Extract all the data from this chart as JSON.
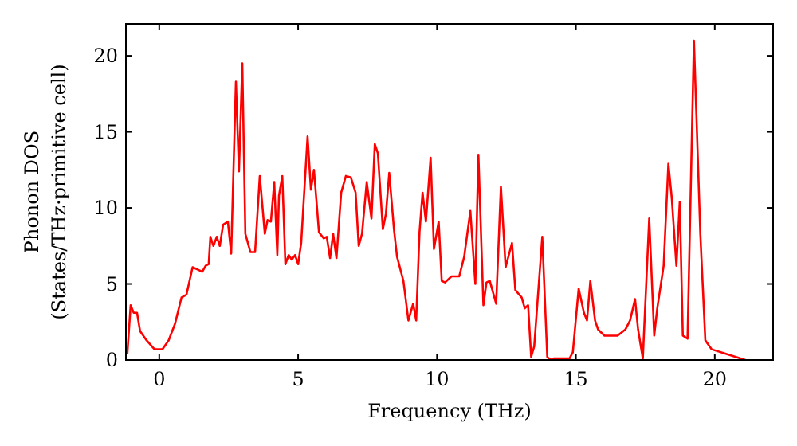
{
  "chart_data": {
    "type": "line",
    "xlabel": "Frequency (THz)",
    "ylabel": "Phonon DOS\n(States/THz·primitive cell)",
    "xlim": [
      -1.2,
      22.1
    ],
    "ylim": [
      0,
      22.1
    ],
    "xticks": [
      0,
      5,
      10,
      15,
      20
    ],
    "yticks": [
      0,
      5,
      10,
      15,
      20
    ],
    "grid": false,
    "marker": "none",
    "line_style": "solid",
    "series": [
      {
        "color": "#ff0000",
        "x": [
          -1.15,
          -1.03,
          -0.92,
          -0.8,
          -0.69,
          -0.46,
          -0.17,
          0.11,
          0.34,
          0.57,
          0.8,
          0.98,
          1.2,
          1.44,
          1.55,
          1.67,
          1.78,
          1.84,
          1.95,
          2.07,
          2.18,
          2.3,
          2.47,
          2.59,
          2.76,
          2.87,
          2.99,
          3.1,
          3.28,
          3.45,
          3.62,
          3.8,
          3.9,
          4.02,
          4.14,
          4.25,
          4.31,
          4.43,
          4.54,
          4.66,
          4.77,
          4.89,
          5.0,
          5.11,
          5.34,
          5.46,
          5.57,
          5.75,
          5.92,
          6.03,
          6.15,
          6.26,
          6.38,
          6.55,
          6.72,
          6.9,
          7.07,
          7.18,
          7.3,
          7.47,
          7.64,
          7.76,
          7.87,
          8.05,
          8.16,
          8.28,
          8.45,
          8.56,
          8.79,
          8.97,
          9.14,
          9.25,
          9.37,
          9.48,
          9.6,
          9.77,
          9.89,
          10.06,
          10.17,
          10.29,
          10.52,
          10.8,
          10.98,
          11.2,
          11.38,
          11.49,
          11.67,
          11.78,
          11.9,
          12.13,
          12.3,
          12.47,
          12.7,
          12.82,
          13.05,
          13.16,
          13.28,
          13.39,
          13.5,
          13.79,
          13.97,
          14.08,
          14.2,
          14.77,
          14.89,
          15.1,
          15.29,
          15.4,
          15.52,
          15.69,
          15.8,
          16.03,
          16.5,
          16.78,
          16.95,
          17.13,
          17.24,
          17.41,
          17.64,
          17.82,
          17.93,
          18.16,
          18.33,
          18.45,
          18.62,
          18.74,
          18.85,
          19.02,
          19.25,
          19.48,
          19.66,
          19.89,
          20.4,
          21.1
        ],
        "values": [
          0.4,
          3.6,
          3.1,
          3.1,
          1.9,
          1.3,
          0.7,
          0.7,
          1.3,
          2.4,
          4.1,
          4.3,
          6.1,
          5.9,
          5.8,
          6.2,
          6.3,
          8.1,
          7.5,
          8.1,
          7.5,
          8.9,
          9.1,
          7.0,
          18.3,
          12.4,
          19.5,
          8.3,
          7.1,
          7.1,
          12.1,
          8.3,
          9.2,
          9.1,
          11.7,
          6.9,
          10.8,
          12.1,
          6.3,
          6.9,
          6.6,
          6.9,
          6.3,
          7.7,
          14.7,
          11.2,
          12.5,
          8.4,
          8.0,
          8.1,
          6.7,
          8.3,
          6.7,
          11.0,
          12.1,
          12.0,
          11.0,
          7.5,
          8.3,
          11.7,
          9.3,
          14.2,
          13.6,
          8.6,
          9.6,
          12.3,
          8.6,
          6.8,
          5.2,
          2.6,
          3.7,
          2.6,
          8.4,
          11.0,
          9.1,
          13.3,
          7.3,
          9.1,
          5.2,
          5.1,
          5.5,
          5.5,
          6.8,
          9.8,
          5.0,
          13.5,
          3.6,
          5.1,
          5.2,
          3.7,
          11.4,
          6.1,
          7.7,
          4.6,
          4.1,
          3.4,
          3.6,
          0.2,
          0.9,
          8.1,
          0.2,
          0,
          0.1,
          0.1,
          0.5,
          4.7,
          3.1,
          2.6,
          5.2,
          2.6,
          2.0,
          1.6,
          1.6,
          2.0,
          2.6,
          4.0,
          2.0,
          0.1,
          9.3,
          1.6,
          3.4,
          6.2,
          12.9,
          10.7,
          6.2,
          10.4,
          1.6,
          1.4,
          21.0,
          8.3,
          1.3,
          0.7,
          0.4,
          0
        ]
      }
    ]
  }
}
